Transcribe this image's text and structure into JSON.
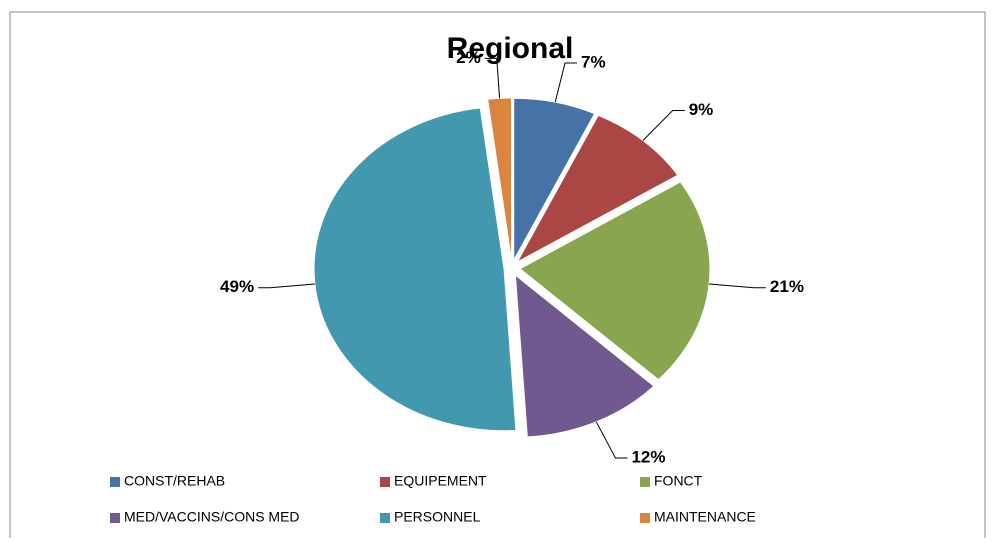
{
  "chart_data": {
    "type": "pie",
    "title": "Regional",
    "categories": [
      "CONST/REHAB",
      "EQUIPEMENT",
      "FONCT",
      "MED/VACCINS/CONS  MED",
      "PERSONNEL",
      "MAINTENANCE"
    ],
    "values": [
      7,
      9,
      21,
      12,
      49,
      2
    ],
    "value_labels": [
      "7%",
      "9%",
      "21%",
      "12%",
      "49%",
      "2%"
    ],
    "colors": [
      "#4572a7",
      "#aa4643",
      "#89a54e",
      "#71588f",
      "#4198af",
      "#db843d"
    ],
    "legend": "bottom"
  }
}
